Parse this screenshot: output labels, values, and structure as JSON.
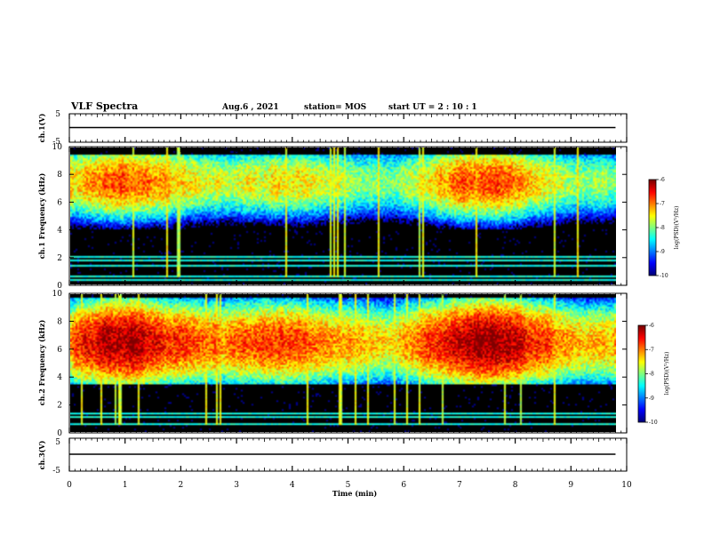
{
  "header": {
    "title": "VLF Spectra",
    "date": "Aug.6  , 2021",
    "station": "station= MOS",
    "start": "start  UT  =   2  : 10 : 1"
  },
  "chart_data": [
    {
      "type": "line",
      "panel": "ch1-waveform",
      "ylabel": "ch.1(V)",
      "ylim": [
        -5,
        5
      ],
      "yticks": [
        "5",
        "-5"
      ],
      "xlim": [
        0,
        10
      ],
      "series": [
        {
          "x": [
            0,
            9.8
          ],
          "values": [
            0,
            0
          ]
        }
      ]
    },
    {
      "type": "heatmap",
      "panel": "ch1-spectrogram",
      "ylabel": "ch.1 Frequency (kHz)",
      "ylim": [
        0,
        10
      ],
      "yticks": [
        "0",
        "2",
        "4",
        "6",
        "8",
        "10"
      ],
      "xlim": [
        0,
        10
      ],
      "data_end_min": 9.8,
      "colorbar": {
        "label": "log(PSD)(V²/Hz)",
        "ticks": [
          "-6",
          "-7",
          "-8",
          "-9",
          "-10"
        ],
        "range": [
          -10,
          -6
        ]
      },
      "bands_khz": [
        0.3,
        0.5,
        1.3,
        1.7,
        2.0
      ],
      "emission": {
        "center_khz": 7.5,
        "upper_khz": 9.5,
        "lower_khz": 4.0,
        "peak_log_psd": -7.5
      }
    },
    {
      "type": "heatmap",
      "panel": "ch2-spectrogram",
      "ylabel": "ch.2 Frequency (kHz)",
      "ylim": [
        0,
        10
      ],
      "yticks": [
        "0",
        "2",
        "4",
        "6",
        "8",
        "10"
      ],
      "xlim": [
        0,
        10
      ],
      "data_end_min": 9.8,
      "colorbar": {
        "label": "log(PSD)(V²/Hz)",
        "ticks": [
          "-6",
          "-7",
          "-8",
          "-9",
          "-10"
        ],
        "range": [
          -10,
          -6
        ]
      },
      "bands_khz": [
        0.5,
        1.0,
        1.3
      ],
      "emission": {
        "center_khz": 6.5,
        "upper_khz": 9.8,
        "lower_khz": 3.5,
        "peak_log_psd": -6.8
      }
    },
    {
      "type": "line",
      "panel": "ch3-waveform",
      "ylabel": "ch.3(V)",
      "ylim": [
        -5,
        5
      ],
      "yticks": [
        "5",
        "-5"
      ],
      "xlim": [
        0,
        10
      ],
      "xticks": [
        "0",
        "1",
        "2",
        "3",
        "4",
        "5",
        "6",
        "7",
        "8",
        "9",
        "10"
      ],
      "xlabel": "Time  (min)",
      "series": [
        {
          "x": [
            0,
            9.8
          ],
          "values": [
            0,
            0
          ]
        }
      ]
    }
  ]
}
